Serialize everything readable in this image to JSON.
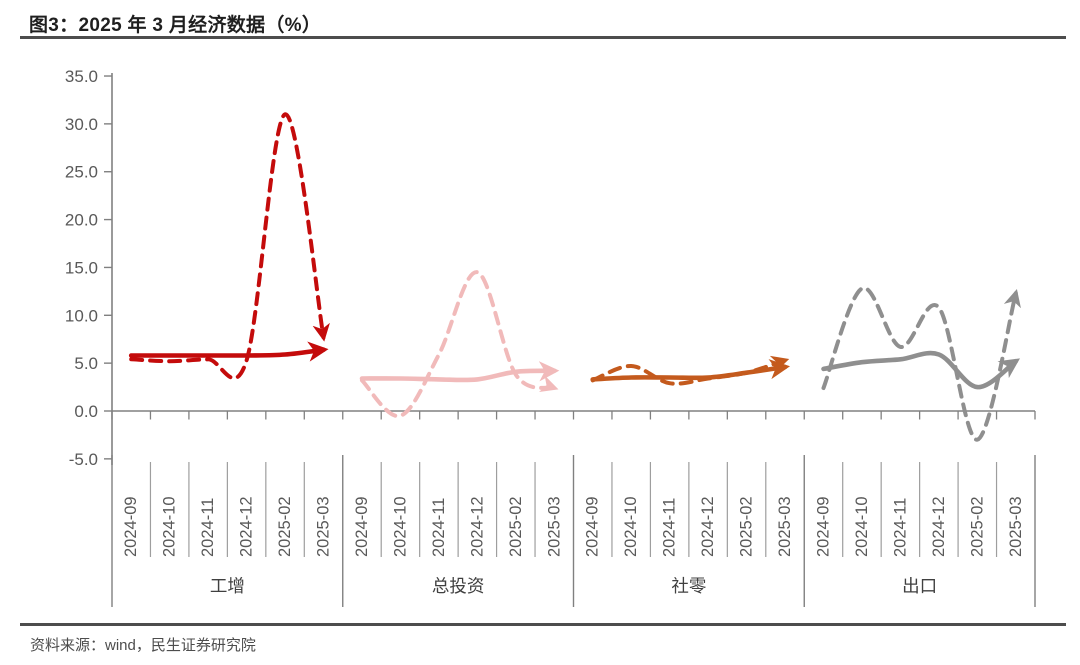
{
  "title": "图3：2025 年 3 月经济数据（%）",
  "source": "资料来源：wind，民生证券研究院",
  "chart_data": {
    "type": "line",
    "title": "图3：2025 年 3 月经济数据（%）",
    "xlabel": "",
    "ylabel": "",
    "ylim": [
      -5,
      35
    ],
    "yticks": [
      35,
      30,
      25,
      20,
      15,
      10,
      5,
      0,
      -5
    ],
    "ytick_labels": [
      "35.0",
      "30.0",
      "25.0",
      "20.0",
      "15.0",
      "10.0",
      "5.0",
      "0.0",
      "-5.0"
    ],
    "grid": false,
    "legend": false,
    "categories": [
      "2024-09",
      "2024-10",
      "2024-11",
      "2024-12",
      "2025-02",
      "2025-03"
    ],
    "groups": [
      {
        "label": "工增",
        "color": "#C40B0B",
        "series": [
          {
            "style": "solid",
            "arrow_end": true,
            "values": [
              5.8,
              5.8,
              5.8,
              5.8,
              5.9,
              6.4
            ]
          },
          {
            "style": "dashed",
            "arrow_end": true,
            "values": [
              5.4,
              5.2,
              5.4,
              5.3,
              31.0,
              7.7
            ]
          }
        ]
      },
      {
        "label": "总投资",
        "color": "#F1BABA",
        "series": [
          {
            "style": "solid",
            "arrow_end": true,
            "values": [
              3.4,
              3.4,
              3.3,
              3.3,
              4.1,
              4.2
            ]
          },
          {
            "style": "dashed",
            "arrow_end": true,
            "values": [
              3.2,
              -0.5,
              5.9,
              14.5,
              3.8,
              2.4
            ]
          }
        ]
      },
      {
        "label": "社零",
        "color": "#C45A1D",
        "series": [
          {
            "style": "solid",
            "arrow_end": true,
            "values": [
              3.3,
              3.5,
              3.5,
              3.5,
              4.0,
              4.6
            ]
          },
          {
            "style": "dashed",
            "arrow_end": true,
            "values": [
              3.2,
              4.7,
              2.9,
              3.4,
              4.0,
              5.3
            ]
          }
        ]
      },
      {
        "label": "出口",
        "color": "#8F8F8F",
        "series": [
          {
            "style": "solid",
            "arrow_end": true,
            "values": [
              4.4,
              5.1,
              5.4,
              5.9,
              2.5,
              5.2
            ]
          },
          {
            "style": "dashed",
            "arrow_end": true,
            "values": [
              2.4,
              12.8,
              6.7,
              10.8,
              -3.0,
              12.3
            ]
          }
        ]
      }
    ]
  }
}
